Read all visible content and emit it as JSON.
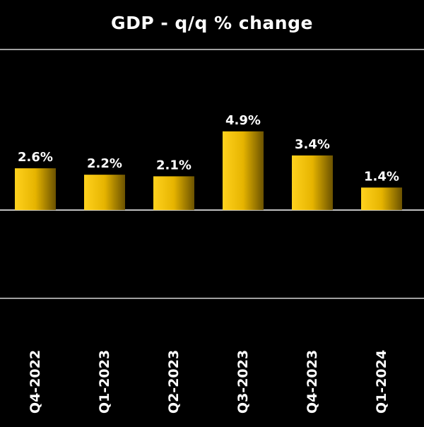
{
  "chart_data": {
    "type": "bar",
    "title": "GDP - q/q % change",
    "categories": [
      "Q4-2022",
      "Q1-2023",
      "Q2-2023",
      "Q3-2023",
      "Q4-2023",
      "Q1-2024"
    ],
    "values": [
      2.6,
      2.2,
      2.1,
      4.9,
      3.4,
      1.4
    ],
    "data_labels": [
      "2.6%",
      "2.2%",
      "2.1%",
      "4.9%",
      "3.4%",
      "1.4%"
    ],
    "unit": "%",
    "xlabel": "",
    "ylabel": "",
    "ylim": [
      -5.5,
      10
    ],
    "grid": false,
    "legend": "none",
    "colors": {
      "background": "#000000",
      "text": "#ffffff",
      "bar_light": "#ffd21e",
      "bar_mid": "#e6b400",
      "bar_dark": "#6b5200",
      "lines": "#ffffff"
    }
  }
}
